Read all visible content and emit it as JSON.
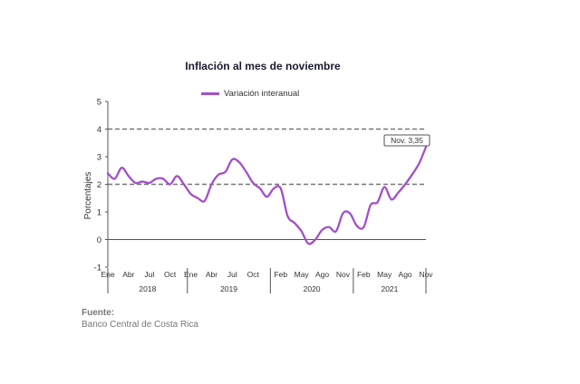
{
  "chart_data": {
    "type": "line",
    "title": "Inflación al mes de noviembre",
    "ylabel": "Porcentajes",
    "xlabel": "",
    "ylim": [
      -1,
      5
    ],
    "yticks": [
      "-1",
      "0",
      "1",
      "2",
      "3",
      "4",
      "5"
    ],
    "month_tick_labels": [
      "Ene",
      "Abr",
      "Jul",
      "Oct",
      "Ene",
      "Abr",
      "Jul",
      "Oct",
      "Feb",
      "May",
      "Ago",
      "Nov",
      "Feb",
      "May",
      "Ago",
      "Nov"
    ],
    "year_labels": [
      "2018",
      "2019",
      "2020",
      "2021"
    ],
    "reference_lines": [
      2,
      4
    ],
    "legend_position": "top",
    "series": [
      {
        "name": "Variación interanual",
        "color": "#a34fc9",
        "x": [
          "2018-01",
          "2018-02",
          "2018-03",
          "2018-04",
          "2018-05",
          "2018-06",
          "2018-07",
          "2018-08",
          "2018-09",
          "2018-10",
          "2018-11",
          "2018-12",
          "2019-01",
          "2019-02",
          "2019-03",
          "2019-04",
          "2019-05",
          "2019-06",
          "2019-07",
          "2019-08",
          "2019-09",
          "2019-10",
          "2019-11",
          "2019-12",
          "2020-01",
          "2020-02",
          "2020-03",
          "2020-04",
          "2020-05",
          "2020-06",
          "2020-07",
          "2020-08",
          "2020-09",
          "2020-10",
          "2020-11",
          "2020-12",
          "2021-01",
          "2021-02",
          "2021-03",
          "2021-04",
          "2021-05",
          "2021-06",
          "2021-07",
          "2021-08",
          "2021-09",
          "2021-10",
          "2021-11"
        ],
        "values": [
          2.4,
          2.2,
          2.6,
          2.3,
          2.05,
          2.1,
          2.05,
          2.2,
          2.2,
          2.0,
          2.3,
          2.0,
          1.65,
          1.5,
          1.4,
          2.0,
          2.35,
          2.45,
          2.9,
          2.8,
          2.45,
          2.05,
          1.85,
          1.55,
          1.85,
          1.85,
          0.85,
          0.6,
          0.3,
          -0.15,
          0.0,
          0.35,
          0.45,
          0.3,
          0.95,
          0.95,
          0.5,
          0.45,
          1.25,
          1.35,
          1.9,
          1.45,
          1.7,
          2.0,
          2.35,
          2.75,
          3.35
        ]
      }
    ],
    "annotations": [
      {
        "text": "Nov. 3,35",
        "x": "2021-11",
        "y": 3.35
      }
    ]
  },
  "source": {
    "label": "Fuente:",
    "text": "Banco Central de Costa Rica"
  }
}
